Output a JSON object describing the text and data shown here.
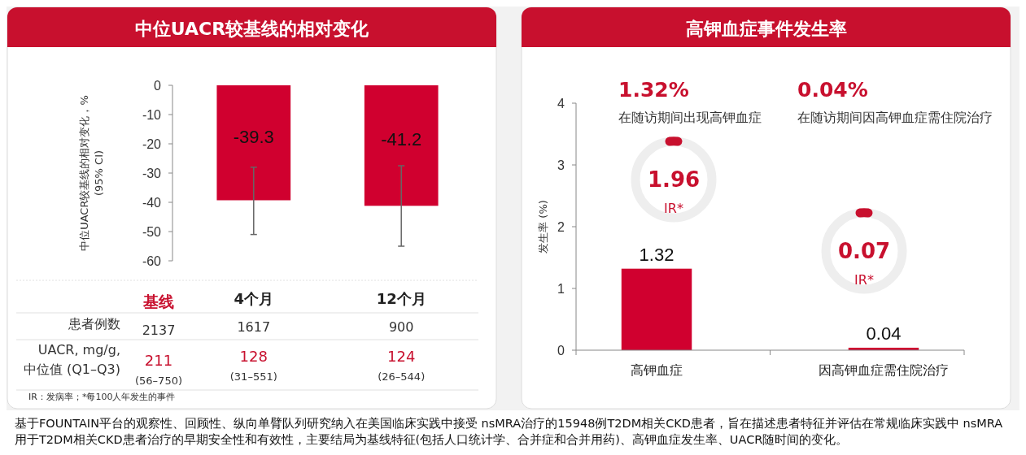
{
  "chart_data": [
    {
      "type": "bar",
      "title": "中位UACR较基线的相对变化",
      "ylabel": "中位UACR较基线的相对变化，%\n(95% CI)",
      "categories": [
        "4个月",
        "12个月"
      ],
      "values": [
        -39.3,
        -41.2
      ],
      "errors": [
        [
          -51,
          -28
        ],
        [
          -55,
          -27.5
        ]
      ],
      "color": "#d0002f",
      "ylim": [
        -60,
        0
      ],
      "yticks": [
        -60,
        -50,
        -40,
        -30,
        -20,
        -10,
        0
      ],
      "data_labels": true,
      "annotations": [
        "基线",
        "患者例数",
        "2137",
        "1617",
        "900",
        "UACR, mg/g,",
        "中位值 (Q1–Q3)",
        "211",
        "(56–750)",
        "128",
        "(31–551)",
        "124",
        "(26–544)",
        "IR：发病率；*每100人年发生的事件"
      ]
    },
    {
      "type": "bar",
      "title": "高钾血症事件发生率",
      "ylabel": "发生率 (%)",
      "categories": [
        "高钾血症",
        "因高钾血症需住院治疗"
      ],
      "values": [
        1.32,
        0.04
      ],
      "color": "#d0002f",
      "ylim": [
        0,
        4
      ],
      "yticks": [
        0,
        1,
        2,
        3,
        4
      ],
      "data_labels": true,
      "annotations": [
        "1.32%",
        "在随访期间出现高钾血症",
        "0.04%",
        "在随访期间因高钾血症需住院治疗",
        "1.96",
        "IR*",
        "0.07",
        "IR*",
        "基于FOUNTAIN平台的观察性、回顾性、纵向单臂队列研究纳入在美国临床实践中接受 nsMRA治疗的15948例T2DM相关CKD患者，旨在描述患者特征并评估在常规临床实践中 nsMRA用于T2DM相关CKD患者治疗的早期安全性和有效性，主要结局为基线特征(包括人口统计学、合并症和合并用药)、高钾血症发生率、UACR随时间的变化。"
      ]
    }
  ]
}
